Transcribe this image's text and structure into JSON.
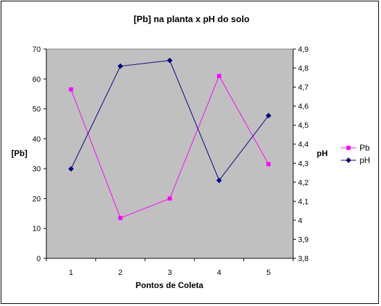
{
  "chart_data": {
    "type": "line",
    "title": "[Pb] na planta x pH do solo",
    "xlabel": "Pontos de Coleta",
    "ylabel": "[Pb]",
    "y2label": "pH",
    "x": [
      1,
      2,
      3,
      4,
      5
    ],
    "x_ticks": [
      "1",
      "2",
      "3",
      "4",
      "5"
    ],
    "ylim": [
      0,
      70
    ],
    "y_ticks": [
      "0",
      "10",
      "20",
      "30",
      "40",
      "50",
      "60",
      "70"
    ],
    "y2lim": [
      3.8,
      4.9
    ],
    "y2_ticks": [
      "3,8",
      "3,9",
      "4",
      "4,1",
      "4,2",
      "4,3",
      "4,4",
      "4,5",
      "4,6",
      "4,7",
      "4,8",
      "4,9"
    ],
    "grid": false,
    "legend_position": "right",
    "plot_background": "#c0c0c0",
    "series": [
      {
        "name": "Pb",
        "axis": "left",
        "color": "#ff00ff",
        "marker": "square",
        "values": [
          56.5,
          13.5,
          20,
          61,
          31.5
        ]
      },
      {
        "name": "pH",
        "axis": "right",
        "color": "#000080",
        "marker": "diamond",
        "values": [
          4.27,
          4.81,
          4.84,
          4.21,
          4.55
        ]
      }
    ]
  }
}
